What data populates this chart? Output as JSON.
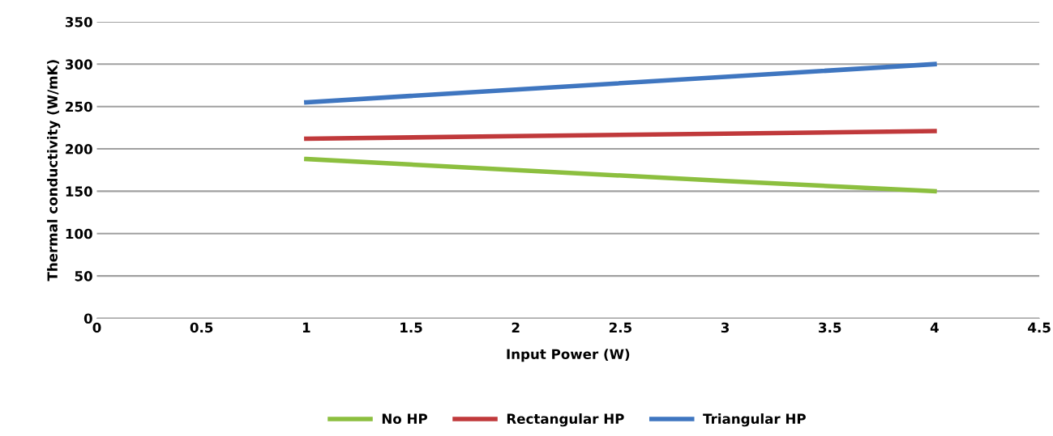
{
  "chart_data": {
    "type": "line",
    "xlabel": "Input Power (W)",
    "ylabel": "Thermal conductivity (W/mK)",
    "x": [
      1,
      2,
      3,
      4
    ],
    "series": [
      {
        "name": "No HP",
        "color": "#8cbf3f",
        "values": [
          188,
          175,
          162,
          150
        ]
      },
      {
        "name": "Rectangular HP",
        "color": "#c0393b",
        "values": [
          212,
          215,
          218,
          221
        ]
      },
      {
        "name": "Triangular HP",
        "color": "#3f76c0",
        "values": [
          255,
          270,
          285,
          300
        ]
      }
    ],
    "xlim": [
      0,
      4.5
    ],
    "xticks": [
      0,
      0.5,
      1,
      1.5,
      2,
      2.5,
      3,
      3.5,
      4,
      4.5
    ],
    "ylim": [
      0,
      350
    ],
    "yticks": [
      0,
      50,
      100,
      150,
      200,
      250,
      300,
      350
    ],
    "grid": "y",
    "legend": "bottom",
    "marker": "none",
    "line_style": "solid"
  }
}
